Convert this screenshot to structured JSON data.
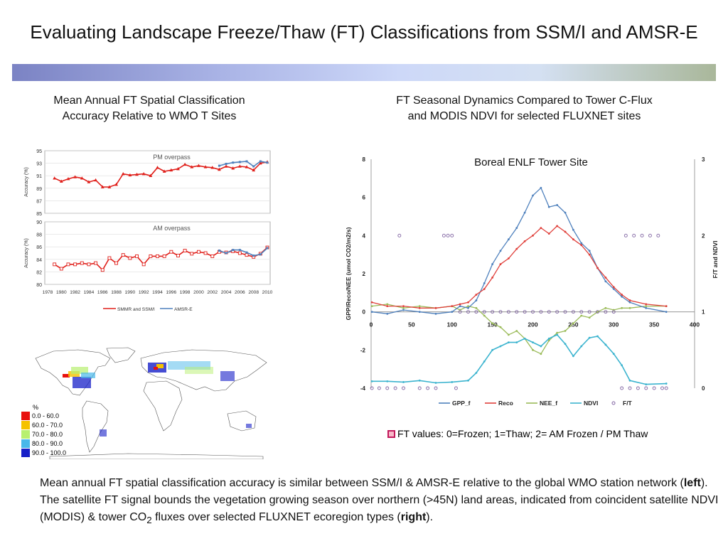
{
  "slide": {
    "title": "Evaluating Landscape Freeze/Thaw (FT) Classifications from SSM/I and AMSR-E",
    "left_caption_line1": "Mean Annual FT Spatial Classification",
    "left_caption_line2": "Accuracy Relative to WMO T Sites",
    "right_caption_line1": "FT Seasonal Dynamics Compared to Tower C-Flux",
    "right_caption_line2": "and MODIS NDVI for selected FLUXNET sites",
    "footer_part1": "Mean annual FT spatial classification accuracy is similar between SSM/I & AMSR-E relative to the global WMO station network (",
    "footer_bold1": "left",
    "footer_part2": "). The satellite FT signal bounds the vegetation growing season over northern (>45N) land areas, indicated from coincident satellite NDVI (MODIS) & tower CO",
    "footer_sub": "2",
    "footer_part3": " fluxes over selected FLUXNET ecoregion types (",
    "footer_bold2": "right",
    "footer_part4": ").",
    "ft_note": "FT values: 0=Frozen; 1=Thaw; 2= AM Frozen / PM Thaw"
  },
  "map_legend": {
    "title": "%",
    "classes": [
      {
        "label": "0.0 - 60.0",
        "color": "#e8110f"
      },
      {
        "label": "60.0 - 70.0",
        "color": "#f5c200"
      },
      {
        "label": "70.0 - 80.0",
        "color": "#b8f070"
      },
      {
        "label": "80.0 - 90.0",
        "color": "#49b8ea"
      },
      {
        "label": "90.0 - 100.0",
        "color": "#1820c8"
      }
    ]
  },
  "chart_data": [
    {
      "type": "line",
      "title": "PM overpass",
      "ylabel": "Accuracy (%)",
      "ylim": [
        85,
        95
      ],
      "yticks": [
        "85",
        "87",
        "89",
        "91",
        "93",
        "95"
      ],
      "xticks": [
        "1978",
        "1980",
        "1982",
        "1984",
        "1986",
        "1988",
        "1990",
        "1992",
        "1994",
        "1996",
        "1998",
        "2000",
        "2002",
        "2004",
        "2006",
        "2008",
        "2010"
      ],
      "series": [
        {
          "name": "SMMR and SSM/I",
          "color": "#e0201b",
          "x": [
            1979,
            1980,
            1981,
            1982,
            1983,
            1984,
            1985,
            1986,
            1987,
            1988,
            1989,
            1990,
            1991,
            1992,
            1993,
            1994,
            1995,
            1996,
            1997,
            1998,
            1999,
            2000,
            2001,
            2002,
            2003,
            2004,
            2005,
            2006,
            2007,
            2008,
            2009,
            2010
          ],
          "values": [
            90.6,
            90.1,
            90.5,
            90.8,
            90.6,
            90.0,
            90.3,
            89.2,
            89.2,
            89.6,
            91.3,
            91.1,
            91.2,
            91.3,
            91.0,
            92.3,
            91.7,
            91.9,
            92.1,
            92.8,
            92.4,
            92.6,
            92.4,
            92.3,
            92.0,
            92.5,
            92.2,
            92.5,
            92.4,
            91.9,
            93.0,
            93.2
          ]
        },
        {
          "name": "AMSR-E",
          "color": "#4f81bd",
          "x": [
            2003,
            2004,
            2005,
            2006,
            2007,
            2008,
            2009,
            2010
          ],
          "values": [
            92.6,
            92.9,
            93.1,
            93.2,
            93.3,
            92.5,
            93.3,
            93.1
          ]
        }
      ]
    },
    {
      "type": "line",
      "title": "AM overpass",
      "ylabel": "Accuracy (%)",
      "ylim": [
        80,
        90
      ],
      "yticks": [
        "80",
        "82",
        "84",
        "86",
        "88",
        "90"
      ],
      "xticks": [
        "1978",
        "1980",
        "1982",
        "1984",
        "1986",
        "1988",
        "1990",
        "1992",
        "1994",
        "1996",
        "1998",
        "2000",
        "2002",
        "2004",
        "2006",
        "2008",
        "2010"
      ],
      "series": [
        {
          "name": "SMMR and SSM/I",
          "color": "#e0201b",
          "x": [
            1979,
            1980,
            1981,
            1982,
            1983,
            1984,
            1985,
            1986,
            1987,
            1988,
            1989,
            1990,
            1991,
            1992,
            1993,
            1994,
            1995,
            1996,
            1997,
            1998,
            1999,
            2000,
            2001,
            2002,
            2003,
            2004,
            2005,
            2006,
            2007,
            2008,
            2009,
            2010
          ],
          "values": [
            83.2,
            82.5,
            83.2,
            83.2,
            83.4,
            83.2,
            83.4,
            82.3,
            84.2,
            83.4,
            84.7,
            84.2,
            84.5,
            83.2,
            84.5,
            84.5,
            84.5,
            85.2,
            84.6,
            85.4,
            84.9,
            85.2,
            85.0,
            84.5,
            85.2,
            85.1,
            85.3,
            85.0,
            84.7,
            84.4,
            84.9,
            85.9
          ]
        },
        {
          "name": "AMSR-E",
          "color": "#4f81bd",
          "x": [
            2003,
            2004,
            2005,
            2006,
            2007,
            2008,
            2009,
            2010
          ],
          "values": [
            85.4,
            85.0,
            85.5,
            85.5,
            85.1,
            84.6,
            84.8,
            85.8
          ]
        }
      ],
      "legend": [
        "SMMR and SSM/I",
        "AMSR-E"
      ]
    },
    {
      "type": "line",
      "title": "Boreal ENLF Tower Site",
      "xlabel": "",
      "ylabel": "GPP/Reco/NEE (umol CO2/m2/s)",
      "ylabel2": "F/T and NDVI",
      "xlim": [
        0,
        400
      ],
      "ylim": [
        -4,
        8
      ],
      "ylim2": [
        0,
        3
      ],
      "xticks": [
        "0",
        "50",
        "100",
        "150",
        "200",
        "250",
        "300",
        "350",
        "400"
      ],
      "yticks": [
        "-4",
        "-2",
        "0",
        "2",
        "4",
        "6",
        "8"
      ],
      "yticks2": [
        "0",
        "1",
        "2",
        "3"
      ],
      "series": [
        {
          "name": "GPP_f",
          "color": "#4f81bd",
          "axis": "left",
          "x": [
            1,
            20,
            40,
            60,
            80,
            100,
            110,
            120,
            130,
            140,
            150,
            160,
            170,
            180,
            190,
            200,
            210,
            220,
            230,
            240,
            250,
            260,
            270,
            280,
            290,
            300,
            310,
            320,
            340,
            365
          ],
          "values": [
            0,
            -0.1,
            0.1,
            0,
            -0.1,
            0,
            0.3,
            0.2,
            0.6,
            1.5,
            2.5,
            3.2,
            3.8,
            4.4,
            5.2,
            6.1,
            6.5,
            5.5,
            5.6,
            5.2,
            4.3,
            3.6,
            3.2,
            2.3,
            1.6,
            1.2,
            0.8,
            0.5,
            0.2,
            0
          ]
        },
        {
          "name": "Reco",
          "color": "#e0403b",
          "axis": "left",
          "x": [
            1,
            20,
            40,
            60,
            80,
            100,
            110,
            120,
            130,
            140,
            150,
            160,
            170,
            180,
            190,
            200,
            210,
            220,
            230,
            240,
            250,
            260,
            270,
            280,
            290,
            300,
            310,
            320,
            340,
            365
          ],
          "values": [
            0.5,
            0.3,
            0.3,
            0.2,
            0.2,
            0.3,
            0.4,
            0.5,
            0.9,
            1.2,
            1.8,
            2.5,
            2.8,
            3.3,
            3.7,
            4.0,
            4.4,
            4.1,
            4.5,
            4.2,
            3.8,
            3.5,
            3.0,
            2.3,
            1.8,
            1.3,
            0.9,
            0.6,
            0.4,
            0.3
          ]
        },
        {
          "name": "NEE_f",
          "color": "#9bbb59",
          "axis": "left",
          "x": [
            1,
            20,
            40,
            60,
            80,
            100,
            110,
            120,
            130,
            140,
            150,
            160,
            170,
            180,
            190,
            200,
            210,
            220,
            230,
            240,
            250,
            260,
            270,
            280,
            290,
            300,
            310,
            320,
            340,
            365
          ],
          "values": [
            0.3,
            0.4,
            0.2,
            0.3,
            0.2,
            0.3,
            0.1,
            0.3,
            0.2,
            -0.2,
            -0.6,
            -0.8,
            -1.2,
            -1.0,
            -1.4,
            -2.0,
            -2.2,
            -1.5,
            -1.1,
            -1.0,
            -0.6,
            -0.2,
            -0.3,
            0,
            0.2,
            0.1,
            0.2,
            0.2,
            0.3,
            0.3
          ]
        },
        {
          "name": "NDVI",
          "color": "#3cb4cf",
          "axis": "right",
          "x": [
            1,
            20,
            40,
            60,
            80,
            100,
            120,
            130,
            140,
            150,
            160,
            170,
            180,
            190,
            200,
            210,
            220,
            230,
            240,
            250,
            260,
            270,
            280,
            290,
            300,
            310,
            320,
            340,
            365
          ],
          "values": [
            0.09,
            0.09,
            0.08,
            0.1,
            0.07,
            0.08,
            0.1,
            0.2,
            0.35,
            0.5,
            0.55,
            0.6,
            0.6,
            0.65,
            0.6,
            0.55,
            0.65,
            0.7,
            0.58,
            0.42,
            0.55,
            0.66,
            0.68,
            0.57,
            0.45,
            0.3,
            0.1,
            0.05,
            0.06
          ]
        },
        {
          "name": "F/T",
          "color": "#8064a2",
          "axis": "right",
          "x": [
            1,
            10,
            20,
            30,
            35,
            40,
            60,
            70,
            80,
            90,
            95,
            100,
            105,
            110,
            120,
            130,
            140,
            150,
            160,
            170,
            180,
            190,
            200,
            210,
            220,
            230,
            240,
            250,
            260,
            270,
            280,
            290,
            300,
            310,
            315,
            320,
            325,
            330,
            335,
            340,
            345,
            350,
            355,
            360,
            365
          ],
          "values": [
            0,
            0,
            0,
            0,
            2,
            0,
            0,
            0,
            0,
            2,
            2,
            2,
            0,
            1,
            1,
            1,
            1,
            1,
            1,
            1,
            1,
            1,
            1,
            1,
            1,
            1,
            1,
            1,
            1,
            1,
            1,
            1,
            1,
            0,
            2,
            0,
            2,
            0,
            2,
            0,
            2,
            0,
            2,
            0,
            0
          ]
        }
      ],
      "legend": [
        "GPP_f",
        "Reco",
        "NEE_f",
        "NDVI",
        "F/T"
      ]
    }
  ]
}
